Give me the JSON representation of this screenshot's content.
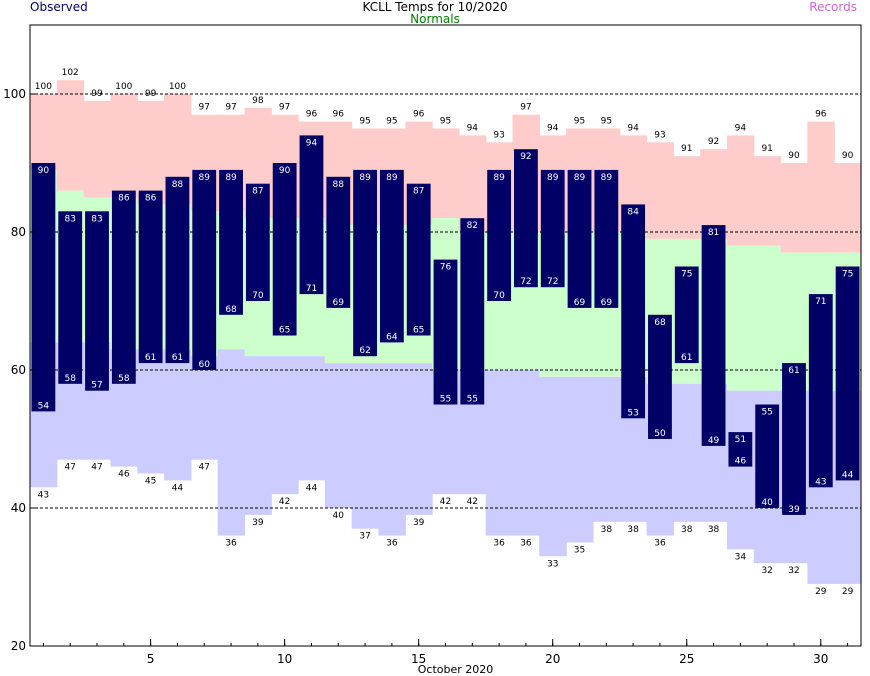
{
  "chart_data": {
    "type": "bar",
    "title": "KCLL Temps for 10/2020",
    "xlabel": "October 2020",
    "ylabel": "",
    "legend": {
      "observed": "Observed",
      "normals": "Normals",
      "records": "Records"
    },
    "colors": {
      "observed": "#000066",
      "observed_label": "#000066",
      "normals_label": "#008000",
      "records_label": "#cc66cc",
      "record_band": "#ffcccc",
      "normal_band": "#ccffcc",
      "low_band": "#ccccff",
      "observed_text": "#ffffff"
    },
    "xlim": [
      0.5,
      31.5
    ],
    "ylim": [
      20,
      110
    ],
    "xticks": [
      5,
      10,
      15,
      20,
      25,
      30
    ],
    "yticks": [
      20,
      40,
      60,
      80,
      100
    ],
    "gridlines": [
      40,
      60,
      80,
      100
    ],
    "days": [
      1,
      2,
      3,
      4,
      5,
      6,
      7,
      8,
      9,
      10,
      11,
      12,
      13,
      14,
      15,
      16,
      17,
      18,
      19,
      20,
      21,
      22,
      23,
      24,
      25,
      26,
      27,
      28,
      29,
      30,
      31
    ],
    "series": [
      {
        "name": "Observed High",
        "values": [
          90,
          83,
          83,
          86,
          86,
          88,
          89,
          89,
          87,
          90,
          94,
          88,
          89,
          89,
          87,
          76,
          82,
          89,
          92,
          89,
          89,
          89,
          84,
          68,
          75,
          81,
          51,
          55,
          61,
          71,
          75
        ]
      },
      {
        "name": "Observed Low",
        "values": [
          54,
          58,
          57,
          58,
          61,
          61,
          60,
          68,
          70,
          65,
          71,
          69,
          62,
          64,
          65,
          55,
          55,
          70,
          72,
          72,
          69,
          69,
          53,
          50,
          61,
          49,
          46,
          40,
          39,
          43,
          44
        ]
      },
      {
        "name": "Record High",
        "values": [
          100,
          102,
          99,
          100,
          99,
          100,
          97,
          97,
          98,
          97,
          96,
          96,
          95,
          95,
          96,
          95,
          94,
          93,
          97,
          94,
          95,
          95,
          94,
          93,
          91,
          92,
          94,
          91,
          90,
          96,
          90
        ]
      },
      {
        "name": "Record Low",
        "values": [
          43,
          47,
          47,
          46,
          45,
          44,
          47,
          36,
          39,
          42,
          44,
          40,
          37,
          36,
          39,
          42,
          42,
          36,
          36,
          33,
          35,
          38,
          38,
          36,
          38,
          38,
          34,
          32,
          32,
          29,
          29
        ]
      },
      {
        "name": "Normal High",
        "values": [
          89,
          86,
          85,
          85,
          84,
          84,
          83,
          83,
          82,
          82,
          82,
          81,
          81,
          81,
          81,
          82,
          80,
          80,
          80,
          80,
          80,
          80,
          80,
          79,
          79,
          79,
          78,
          78,
          77,
          77,
          77
        ]
      },
      {
        "name": "Normal Low",
        "values": [
          64,
          64,
          64,
          63,
          63,
          63,
          62,
          63,
          62,
          62,
          62,
          61,
          61,
          61,
          61,
          60,
          60,
          60,
          60,
          59,
          59,
          59,
          59,
          58,
          58,
          58,
          57,
          57,
          57,
          57,
          57
        ]
      }
    ]
  }
}
